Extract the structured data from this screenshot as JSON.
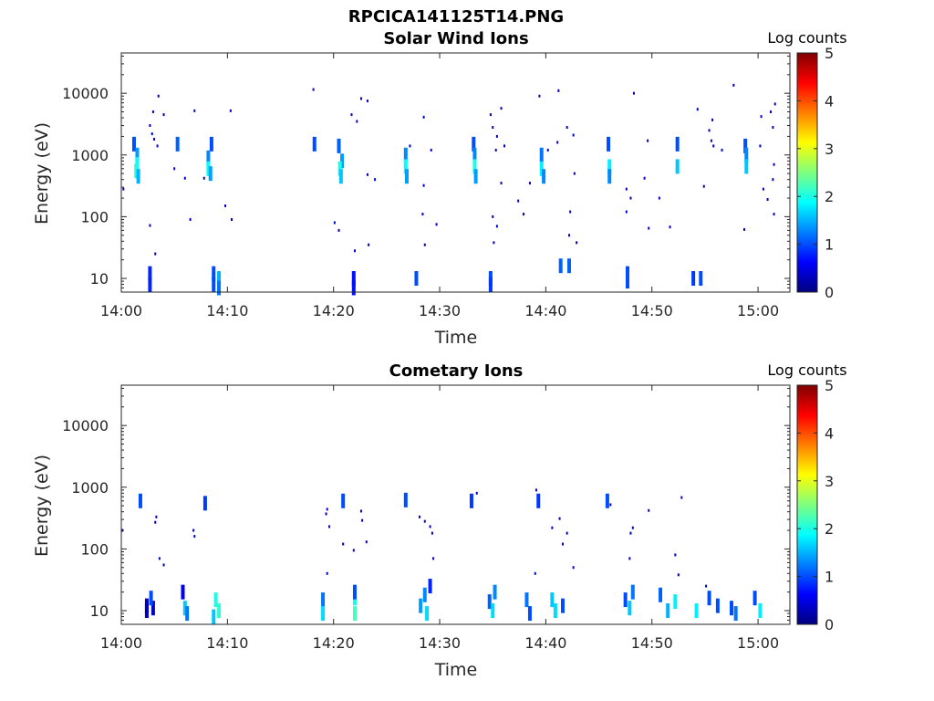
{
  "figure": {
    "title": "RPCICA141125T14.PNG"
  },
  "colorscale": [
    "#00007f",
    "#0000ff",
    "#007fff",
    "#00ffff",
    "#7fff7f",
    "#ffff00",
    "#ff7f00",
    "#ff0000",
    "#7f0000"
  ],
  "chart_data": [
    {
      "type": "heatmap",
      "title": "Solar Wind Ions",
      "xlabel": "Time",
      "ylabel": "Energy (eV)",
      "xlim": [
        "14:00",
        "15:03"
      ],
      "ylim": [
        6,
        45000
      ],
      "yscale": "log",
      "xticks": [
        "14:00",
        "14:10",
        "14:20",
        "14:30",
        "14:40",
        "14:50",
        "15:00"
      ],
      "yticks": [
        "10",
        "100",
        "1000",
        "10000"
      ],
      "colorbar": {
        "label": "Log counts",
        "ticks": [
          "0",
          "1",
          "2",
          "3",
          "4",
          "5"
        ],
        "range": [
          0,
          5
        ]
      },
      "cells": [
        {
          "t": 1.2,
          "e": 1500,
          "v": 1.0
        },
        {
          "t": 1.5,
          "e": 1000,
          "v": 1.4
        },
        {
          "t": 1.5,
          "e": 700,
          "v": 1.9
        },
        {
          "t": 1.4,
          "e": 550,
          "v": 2.0
        },
        {
          "t": 1.6,
          "e": 450,
          "v": 1.5
        },
        {
          "t": 5.3,
          "e": 1500,
          "v": 1.1
        },
        {
          "t": 8.5,
          "e": 1500,
          "v": 1.0
        },
        {
          "t": 8.2,
          "e": 900,
          "v": 1.3
        },
        {
          "t": 8.2,
          "e": 600,
          "v": 1.9
        },
        {
          "t": 8.4,
          "e": 500,
          "v": 1.4
        },
        {
          "t": 18.2,
          "e": 1500,
          "v": 1.0
        },
        {
          "t": 20.5,
          "e": 1400,
          "v": 1.1
        },
        {
          "t": 20.8,
          "e": 800,
          "v": 1.4
        },
        {
          "t": 20.6,
          "e": 600,
          "v": 2.0
        },
        {
          "t": 20.7,
          "e": 450,
          "v": 1.6
        },
        {
          "t": 26.8,
          "e": 1000,
          "v": 1.3
        },
        {
          "t": 26.8,
          "e": 650,
          "v": 1.9
        },
        {
          "t": 26.9,
          "e": 450,
          "v": 1.4
        },
        {
          "t": 33.2,
          "e": 1500,
          "v": 1.0
        },
        {
          "t": 33.3,
          "e": 1000,
          "v": 1.3
        },
        {
          "t": 33.3,
          "e": 650,
          "v": 2.0
        },
        {
          "t": 33.4,
          "e": 450,
          "v": 1.4
        },
        {
          "t": 39.6,
          "e": 1000,
          "v": 1.2
        },
        {
          "t": 39.6,
          "e": 600,
          "v": 1.8
        },
        {
          "t": 39.8,
          "e": 450,
          "v": 1.3
        },
        {
          "t": 45.9,
          "e": 1500,
          "v": 1.0
        },
        {
          "t": 46.0,
          "e": 650,
          "v": 1.8
        },
        {
          "t": 46.0,
          "e": 450,
          "v": 1.3
        },
        {
          "t": 52.4,
          "e": 1500,
          "v": 1.0
        },
        {
          "t": 52.4,
          "e": 650,
          "v": 1.6
        },
        {
          "t": 58.8,
          "e": 1400,
          "v": 1.0
        },
        {
          "t": 58.9,
          "e": 1000,
          "v": 1.3
        },
        {
          "t": 58.9,
          "e": 650,
          "v": 1.6
        },
        {
          "t": 2.7,
          "e": 12,
          "v": 0.8
        },
        {
          "t": 2.7,
          "e": 8,
          "v": 0.8
        },
        {
          "t": 8.7,
          "e": 12,
          "v": 1.0
        },
        {
          "t": 8.7,
          "e": 8,
          "v": 1.0
        },
        {
          "t": 9.2,
          "e": 10,
          "v": 1.5
        },
        {
          "t": 9.2,
          "e": 7,
          "v": 1.2
        },
        {
          "t": 21.9,
          "e": 10,
          "v": 0.7
        },
        {
          "t": 21.9,
          "e": 7,
          "v": 0.7
        },
        {
          "t": 27.8,
          "e": 10,
          "v": 1.0
        },
        {
          "t": 34.8,
          "e": 10,
          "v": 1.0
        },
        {
          "t": 34.8,
          "e": 8,
          "v": 0.9
        },
        {
          "t": 47.7,
          "e": 12,
          "v": 1.0
        },
        {
          "t": 47.7,
          "e": 9,
          "v": 1.0
        },
        {
          "t": 53.9,
          "e": 10,
          "v": 0.9
        },
        {
          "t": 54.6,
          "e": 10,
          "v": 1.0
        },
        {
          "t": 41.4,
          "e": 16,
          "v": 1.1
        },
        {
          "t": 42.2,
          "e": 16,
          "v": 1.1
        }
      ],
      "dots": [
        {
          "t": 0.2,
          "e": 280
        },
        {
          "t": 2.7,
          "e": 3000
        },
        {
          "t": 3.0,
          "e": 5000
        },
        {
          "t": 3.5,
          "e": 9000
        },
        {
          "t": 4.0,
          "e": 4500
        },
        {
          "t": 3.4,
          "e": 1400
        },
        {
          "t": 3.1,
          "e": 1800
        },
        {
          "t": 2.9,
          "e": 2200
        },
        {
          "t": 5.0,
          "e": 600
        },
        {
          "t": 6.0,
          "e": 420
        },
        {
          "t": 6.9,
          "e": 5200
        },
        {
          "t": 6.5,
          "e": 90
        },
        {
          "t": 7.8,
          "e": 420
        },
        {
          "t": 10.3,
          "e": 5200
        },
        {
          "t": 9.8,
          "e": 150
        },
        {
          "t": 10.4,
          "e": 90
        },
        {
          "t": 2.7,
          "e": 72
        },
        {
          "t": 3.2,
          "e": 25
        },
        {
          "t": 18.1,
          "e": 11500
        },
        {
          "t": 20.1,
          "e": 80
        },
        {
          "t": 21.7,
          "e": 4500
        },
        {
          "t": 22.2,
          "e": 3500
        },
        {
          "t": 22.6,
          "e": 8200
        },
        {
          "t": 23.2,
          "e": 7500
        },
        {
          "t": 23.2,
          "e": 480
        },
        {
          "t": 23.9,
          "e": 400
        },
        {
          "t": 22.0,
          "e": 28
        },
        {
          "t": 23.3,
          "e": 35
        },
        {
          "t": 20.5,
          "e": 60
        },
        {
          "t": 28.5,
          "e": 4100
        },
        {
          "t": 27.2,
          "e": 1400
        },
        {
          "t": 29.2,
          "e": 1200
        },
        {
          "t": 28.5,
          "e": 320
        },
        {
          "t": 28.4,
          "e": 110
        },
        {
          "t": 29.7,
          "e": 75
        },
        {
          "t": 28.6,
          "e": 35
        },
        {
          "t": 34.8,
          "e": 4500
        },
        {
          "t": 35.0,
          "e": 2800
        },
        {
          "t": 35.4,
          "e": 2000
        },
        {
          "t": 35.8,
          "e": 5700
        },
        {
          "t": 36.1,
          "e": 1400
        },
        {
          "t": 35.3,
          "e": 1200
        },
        {
          "t": 35.8,
          "e": 350
        },
        {
          "t": 35.0,
          "e": 100
        },
        {
          "t": 35.4,
          "e": 70
        },
        {
          "t": 35.1,
          "e": 38
        },
        {
          "t": 37.4,
          "e": 180
        },
        {
          "t": 37.9,
          "e": 110
        },
        {
          "t": 38.5,
          "e": 350
        },
        {
          "t": 39.4,
          "e": 9000
        },
        {
          "t": 40.2,
          "e": 1200
        },
        {
          "t": 41.1,
          "e": 1600
        },
        {
          "t": 41.2,
          "e": 11000
        },
        {
          "t": 42.0,
          "e": 2800
        },
        {
          "t": 42.6,
          "e": 2100
        },
        {
          "t": 42.7,
          "e": 500
        },
        {
          "t": 42.3,
          "e": 120
        },
        {
          "t": 42.2,
          "e": 50
        },
        {
          "t": 42.9,
          "e": 38
        },
        {
          "t": 47.6,
          "e": 280
        },
        {
          "t": 47.6,
          "e": 120
        },
        {
          "t": 48.0,
          "e": 200
        },
        {
          "t": 48.3,
          "e": 10000
        },
        {
          "t": 49.3,
          "e": 420
        },
        {
          "t": 49.6,
          "e": 1700
        },
        {
          "t": 50.7,
          "e": 200
        },
        {
          "t": 49.7,
          "e": 65
        },
        {
          "t": 51.7,
          "e": 68
        },
        {
          "t": 54.3,
          "e": 5500
        },
        {
          "t": 55.4,
          "e": 2500
        },
        {
          "t": 55.7,
          "e": 3700
        },
        {
          "t": 55.6,
          "e": 1700
        },
        {
          "t": 55.8,
          "e": 1400
        },
        {
          "t": 54.9,
          "e": 310
        },
        {
          "t": 56.6,
          "e": 1200
        },
        {
          "t": 57.7,
          "e": 13500
        },
        {
          "t": 58.7,
          "e": 62
        },
        {
          "t": 60.2,
          "e": 1400
        },
        {
          "t": 60.3,
          "e": 4200
        },
        {
          "t": 61.2,
          "e": 5000
        },
        {
          "t": 61.6,
          "e": 6700
        },
        {
          "t": 61.4,
          "e": 2800
        },
        {
          "t": 61.5,
          "e": 700
        },
        {
          "t": 61.4,
          "e": 400
        },
        {
          "t": 60.5,
          "e": 280
        },
        {
          "t": 60.9,
          "e": 190
        },
        {
          "t": 61.5,
          "e": 110
        }
      ]
    },
    {
      "type": "heatmap",
      "title": "Cometary Ions",
      "xlabel": "Time",
      "ylabel": "Energy (eV)",
      "xlim": [
        "14:00",
        "15:03"
      ],
      "ylim": [
        6,
        45000
      ],
      "yscale": "log",
      "xticks": [
        "14:00",
        "14:10",
        "14:20",
        "14:30",
        "14:40",
        "14:50",
        "15:00"
      ],
      "yticks": [
        "10",
        "100",
        "1000",
        "10000"
      ],
      "colorbar": {
        "label": "Log counts",
        "ticks": [
          "0",
          "1",
          "2",
          "3",
          "4",
          "5"
        ],
        "range": [
          0,
          5
        ]
      },
      "cells": [
        {
          "t": 1.8,
          "e": 600,
          "v": 1.0
        },
        {
          "t": 7.9,
          "e": 550,
          "v": 0.9
        },
        {
          "t": 20.9,
          "e": 600,
          "v": 1.0
        },
        {
          "t": 26.8,
          "e": 620,
          "v": 1.0
        },
        {
          "t": 33.0,
          "e": 600,
          "v": 0.9
        },
        {
          "t": 39.3,
          "e": 600,
          "v": 0.9
        },
        {
          "t": 45.8,
          "e": 600,
          "v": 1.0
        },
        {
          "t": 2.4,
          "e": 12,
          "v": 0.3
        },
        {
          "t": 2.4,
          "e": 10,
          "v": 0.3
        },
        {
          "t": 3.0,
          "e": 11,
          "v": 0.4
        },
        {
          "t": 2.8,
          "e": 16,
          "v": 1.0
        },
        {
          "t": 5.8,
          "e": 20,
          "v": 0.6
        },
        {
          "t": 6.0,
          "e": 11,
          "v": 1.6
        },
        {
          "t": 6.2,
          "e": 9,
          "v": 1.2
        },
        {
          "t": 8.9,
          "e": 15,
          "v": 2.0
        },
        {
          "t": 9.2,
          "e": 10,
          "v": 2.1
        },
        {
          "t": 8.7,
          "e": 8,
          "v": 1.6
        },
        {
          "t": 19.0,
          "e": 15,
          "v": 1.2
        },
        {
          "t": 19.0,
          "e": 9,
          "v": 1.7
        },
        {
          "t": 22.0,
          "e": 16,
          "v": 2.0
        },
        {
          "t": 22.0,
          "e": 9,
          "v": 2.2
        },
        {
          "t": 22.0,
          "e": 20,
          "v": 1.0
        },
        {
          "t": 28.2,
          "e": 12,
          "v": 1.4
        },
        {
          "t": 28.6,
          "e": 18,
          "v": 1.3
        },
        {
          "t": 28.8,
          "e": 9,
          "v": 1.7
        },
        {
          "t": 29.1,
          "e": 25,
          "v": 0.8
        },
        {
          "t": 34.7,
          "e": 14,
          "v": 1.1
        },
        {
          "t": 35.0,
          "e": 10,
          "v": 1.7
        },
        {
          "t": 35.2,
          "e": 20,
          "v": 1.3
        },
        {
          "t": 38.2,
          "e": 15,
          "v": 1.2
        },
        {
          "t": 38.5,
          "e": 9,
          "v": 1.0
        },
        {
          "t": 40.6,
          "e": 15,
          "v": 1.6
        },
        {
          "t": 40.9,
          "e": 10,
          "v": 1.7
        },
        {
          "t": 41.6,
          "e": 12,
          "v": 1.0
        },
        {
          "t": 47.5,
          "e": 15,
          "v": 1.0
        },
        {
          "t": 47.9,
          "e": 11,
          "v": 1.6
        },
        {
          "t": 48.2,
          "e": 20,
          "v": 1.2
        },
        {
          "t": 50.8,
          "e": 18,
          "v": 1.1
        },
        {
          "t": 51.5,
          "e": 10,
          "v": 1.5
        },
        {
          "t": 52.2,
          "e": 14,
          "v": 1.8
        },
        {
          "t": 54.2,
          "e": 10,
          "v": 1.8
        },
        {
          "t": 55.4,
          "e": 16,
          "v": 1.0
        },
        {
          "t": 56.2,
          "e": 12,
          "v": 1.0
        },
        {
          "t": 57.5,
          "e": 11,
          "v": 1.0
        },
        {
          "t": 57.9,
          "e": 9,
          "v": 1.2
        },
        {
          "t": 60.2,
          "e": 10,
          "v": 1.8
        },
        {
          "t": 59.7,
          "e": 16,
          "v": 1.0
        }
      ],
      "dots": [
        {
          "t": 0.1,
          "e": 200
        },
        {
          "t": 3.3,
          "e": 330
        },
        {
          "t": 3.2,
          "e": 270
        },
        {
          "t": 3.6,
          "e": 70
        },
        {
          "t": 4.0,
          "e": 55
        },
        {
          "t": 6.8,
          "e": 200
        },
        {
          "t": 6.9,
          "e": 160
        },
        {
          "t": 19.4,
          "e": 440
        },
        {
          "t": 19.3,
          "e": 370
        },
        {
          "t": 19.6,
          "e": 230
        },
        {
          "t": 19.4,
          "e": 40
        },
        {
          "t": 20.9,
          "e": 120
        },
        {
          "t": 22.6,
          "e": 410
        },
        {
          "t": 22.7,
          "e": 290
        },
        {
          "t": 23.1,
          "e": 130
        },
        {
          "t": 21.9,
          "e": 95
        },
        {
          "t": 28.1,
          "e": 330
        },
        {
          "t": 28.6,
          "e": 280
        },
        {
          "t": 29.1,
          "e": 230
        },
        {
          "t": 29.3,
          "e": 180
        },
        {
          "t": 29.4,
          "e": 70
        },
        {
          "t": 33.5,
          "e": 800
        },
        {
          "t": 39.1,
          "e": 900
        },
        {
          "t": 41.3,
          "e": 310
        },
        {
          "t": 40.6,
          "e": 220
        },
        {
          "t": 42.0,
          "e": 180
        },
        {
          "t": 41.6,
          "e": 120
        },
        {
          "t": 39.0,
          "e": 40
        },
        {
          "t": 42.6,
          "e": 50
        },
        {
          "t": 46.1,
          "e": 520
        },
        {
          "t": 48.2,
          "e": 220
        },
        {
          "t": 48.0,
          "e": 180
        },
        {
          "t": 47.9,
          "e": 70
        },
        {
          "t": 49.7,
          "e": 420
        },
        {
          "t": 52.2,
          "e": 80
        },
        {
          "t": 52.5,
          "e": 38
        },
        {
          "t": 52.8,
          "e": 680
        },
        {
          "t": 55.1,
          "e": 25
        }
      ]
    }
  ]
}
